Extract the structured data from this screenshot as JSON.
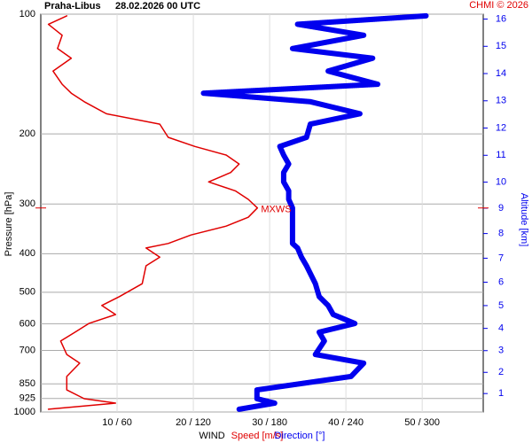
{
  "chart_data": {
    "type": "sounding-wind",
    "title": "Praha-Libus",
    "subtitle": "28.02.2026 00 UTC",
    "credit": "CHMI © 2026",
    "y_label": "Pressure [hPa]",
    "y2_label": "Altitude [km]",
    "x_label": "WIND",
    "ylim": [
      100,
      1000
    ],
    "log_y": true,
    "yticks": [
      100,
      200,
      300,
      400,
      500,
      600,
      700,
      850,
      925,
      1000
    ],
    "y2ticks": [
      1,
      2,
      3,
      4,
      5,
      6,
      7,
      8,
      9,
      10,
      11,
      12,
      13,
      14,
      15,
      16
    ],
    "xlim": [
      0,
      58
    ],
    "xticks": [
      {
        "value": 10,
        "label": "10 / 60"
      },
      {
        "value": 20,
        "label": "20 / 120"
      },
      {
        "value": 30,
        "label": "30 / 180"
      },
      {
        "value": 40,
        "label": "40 / 240"
      },
      {
        "value": 50,
        "label": "50 / 300"
      }
    ],
    "grid": true,
    "pressure": [
      984,
      950,
      926,
      880,
      814,
      754,
      717,
      663,
      630,
      599,
      569,
      540,
      513,
      476,
      429,
      408,
      387,
      377,
      359,
      341,
      324,
      307,
      292,
      278,
      264,
      250,
      238,
      226,
      215,
      204,
      189,
      178,
      166,
      158,
      150,
      139,
      129,
      122,
      113,
      106,
      101
    ],
    "series": [
      {
        "name": "Speed [m/s]",
        "color": "#e00000",
        "scale": 1,
        "values": [
          1.0,
          9.8,
          5.7,
          3.4,
          3.4,
          5.1,
          3.4,
          2.6,
          4.5,
          6.3,
          9.8,
          8.0,
          10.3,
          13.3,
          13.8,
          15.6,
          13.8,
          16.7,
          19.7,
          24.3,
          27.2,
          28.4,
          27.2,
          25.5,
          22.0,
          24.9,
          26.0,
          24.3,
          20.2,
          16.7,
          15.6,
          8.6,
          5.7,
          4.0,
          2.8,
          1.6,
          4.0,
          2.2,
          2.8,
          1.0,
          3.4
        ]
      },
      {
        "name": "Direction [°]",
        "color": "#0000ee",
        "scale": 6,
        "values": [
          156,
          184,
          170,
          170,
          244,
          254,
          216,
          223,
          219,
          247,
          230,
          226,
          219,
          216,
          209,
          205,
          202,
          198,
          198,
          198,
          198,
          198,
          195,
          195,
          191,
          191,
          195,
          191,
          188,
          209,
          212,
          251,
          212,
          128,
          265,
          226,
          261,
          198,
          254,
          202,
          303
        ]
      }
    ],
    "max_wind": {
      "label": "MXWS",
      "pressure": 307,
      "speed": 28.4
    }
  }
}
